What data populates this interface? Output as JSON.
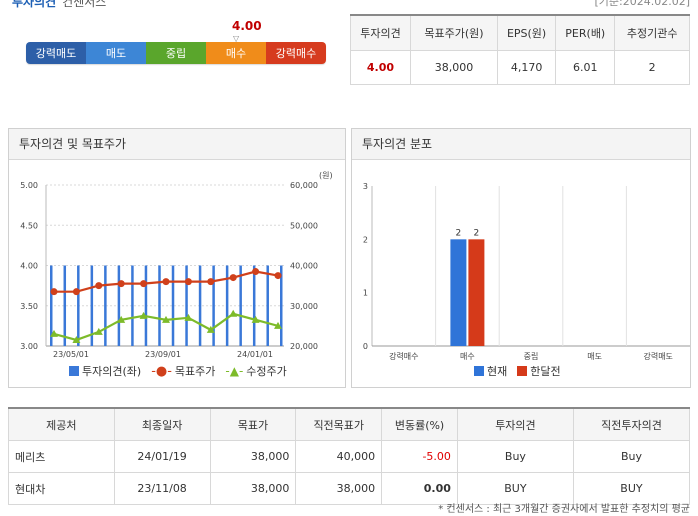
{
  "header": {
    "title": "투자의견",
    "subtitle": "컨센서스",
    "date": "[기준:2024.02.02]"
  },
  "gauge": {
    "score": "4.00",
    "marker": "▽",
    "segments": [
      {
        "label": "강력매도",
        "color": "#2d5fa8"
      },
      {
        "label": "매도",
        "color": "#3d86d6"
      },
      {
        "label": "중립",
        "color": "#5aa62c"
      },
      {
        "label": "매수",
        "color": "#f08c1a"
      },
      {
        "label": "강력매수",
        "color": "#d63b1e"
      }
    ]
  },
  "summary": {
    "headers": [
      "투자의견",
      "목표주가(원)",
      "EPS(원)",
      "PER(배)",
      "추정기관수"
    ],
    "values": [
      "4.00",
      "38,000",
      "4,170",
      "6.01",
      "2"
    ]
  },
  "panel_left": {
    "title": "투자의견 및 목표주가",
    "unit": "(원)",
    "legend": [
      "투자의견(좌)",
      "목표주가",
      "수정주가"
    ]
  },
  "panel_right": {
    "title": "투자의견 분포",
    "legend": [
      "현재",
      "한달전"
    ]
  },
  "chart_data": [
    {
      "type": "line",
      "x_ticks": [
        "23/05/01",
        "23/09/01",
        "24/01/01"
      ],
      "y_left_ticks": [
        "5.00",
        "4.50",
        "4.00",
        "3.50",
        "3.00"
      ],
      "y_right_ticks": [
        "60,000",
        "50,000",
        "40,000",
        "30,000",
        "20,000"
      ],
      "ylim_left": [
        3.0,
        5.0
      ],
      "ylim_right": [
        20000,
        60000
      ],
      "series": [
        {
          "name": "투자의견(좌)",
          "kind": "bar",
          "color": "#3a78d8",
          "values": [
            4,
            4,
            4,
            4,
            4,
            4,
            4,
            4,
            4,
            4,
            4,
            4,
            4,
            4,
            4,
            4,
            4,
            4
          ]
        },
        {
          "name": "목표주가",
          "kind": "line",
          "color": "#d0401b",
          "values": [
            33500,
            33500,
            35000,
            35500,
            35500,
            36000,
            36000,
            36000,
            37000,
            38500,
            37500
          ]
        },
        {
          "name": "수정주가",
          "kind": "line",
          "color": "#7dbb2a",
          "values": [
            23000,
            21500,
            23500,
            26500,
            27500,
            26500,
            27000,
            24000,
            28000,
            26500,
            25000
          ]
        }
      ]
    },
    {
      "type": "bar",
      "categories": [
        "강력매수",
        "매수",
        "중립",
        "매도",
        "강력매도"
      ],
      "ylim": [
        0,
        3
      ],
      "y_ticks": [
        "3",
        "2",
        "1",
        "0"
      ],
      "series": [
        {
          "name": "현재",
          "color": "#2f74d8",
          "values": [
            0,
            2,
            0,
            0,
            0
          ]
        },
        {
          "name": "한달전",
          "color": "#d53a1a",
          "values": [
            0,
            2,
            0,
            0,
            0
          ]
        }
      ]
    }
  ],
  "providers": {
    "headers": [
      "제공처",
      "최종일자",
      "목표가",
      "직전목표가",
      "변동률(%)",
      "투자의견",
      "직전투자의견"
    ],
    "rows": [
      {
        "name": "메리츠",
        "date": "24/01/19",
        "target": "38,000",
        "prev_target": "40,000",
        "change": "-5.00",
        "opinion": "Buy",
        "prev_opinion": "Buy"
      },
      {
        "name": "현대차",
        "date": "23/11/08",
        "target": "38,000",
        "prev_target": "38,000",
        "change": "0.00",
        "opinion": "BUY",
        "prev_opinion": "BUY"
      }
    ]
  },
  "note": "* 컨센서스 : 최근 3개월간 증권사에서 발표한 추정치의 평균"
}
